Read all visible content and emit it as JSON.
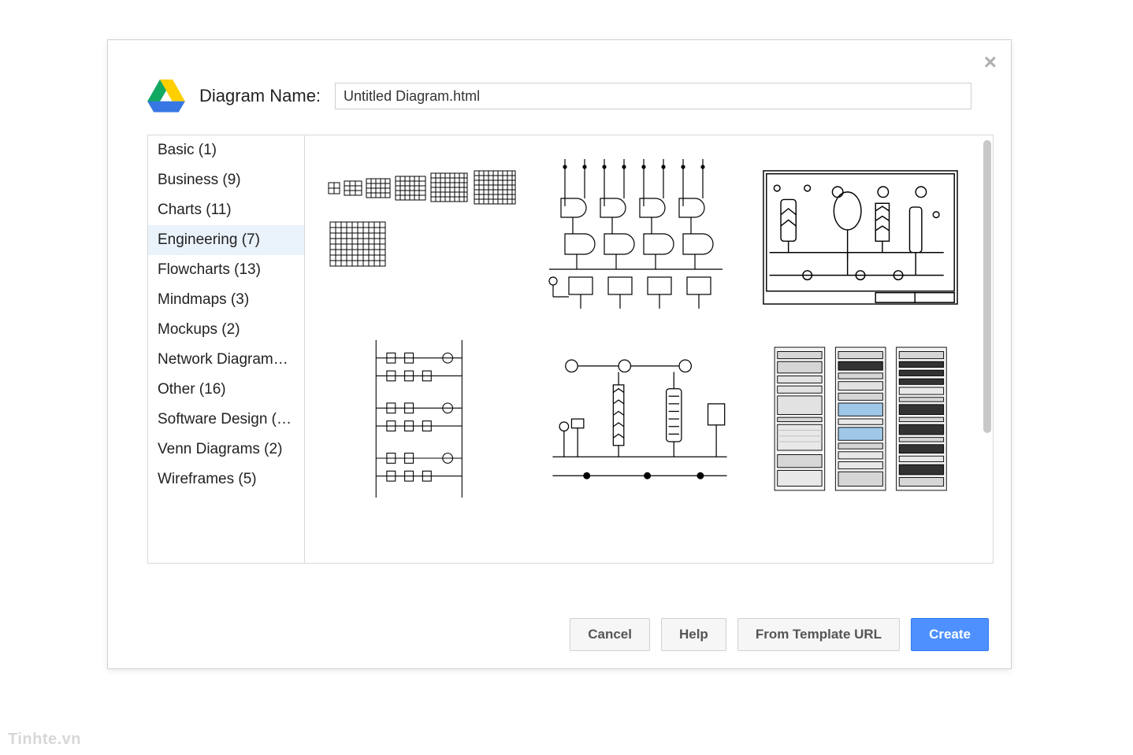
{
  "dialog": {
    "close_glyph": "×",
    "name_label": "Diagram Name:",
    "name_value": "Untitled Diagram.html"
  },
  "sidebar": {
    "items": [
      {
        "label": "Basic (1)",
        "selected": false
      },
      {
        "label": "Business (9)",
        "selected": false
      },
      {
        "label": "Charts (11)",
        "selected": false
      },
      {
        "label": "Engineering (7)",
        "selected": true
      },
      {
        "label": "Flowcharts (13)",
        "selected": false
      },
      {
        "label": "Mindmaps (3)",
        "selected": false
      },
      {
        "label": "Mockups (2)",
        "selected": false
      },
      {
        "label": "Network Diagram…",
        "selected": false
      },
      {
        "label": "Other (16)",
        "selected": false
      },
      {
        "label": "Software Design (…",
        "selected": false
      },
      {
        "label": "Venn Diagrams (2)",
        "selected": false
      },
      {
        "label": "Wireframes (5)",
        "selected": false
      }
    ]
  },
  "templates": [
    {
      "name": "grids",
      "type": "grid-array"
    },
    {
      "name": "logic-circuit",
      "type": "circuit"
    },
    {
      "name": "process-flow",
      "type": "pid"
    },
    {
      "name": "ladder-logic",
      "type": "ladder"
    },
    {
      "name": "piping-diagram",
      "type": "piping"
    },
    {
      "name": "server-racks",
      "type": "racks"
    }
  ],
  "footer": {
    "cancel": "Cancel",
    "help": "Help",
    "from_url": "From Template URL",
    "create": "Create"
  },
  "colors": {
    "border": "#d0d0d0",
    "text": "#222222",
    "selected_bg": "#eaf2fb",
    "primary_bg": "#4d90fe",
    "primary_border": "#3079ed",
    "scrollbar": "#c8c8c8",
    "diagram_stroke": "#000000",
    "rack_blue": "#9fc8e8"
  },
  "drive_icon": {
    "yellow": "#ffcf00",
    "green": "#11a861",
    "blue": "#3777e3"
  },
  "watermark": "Tinhte.vn"
}
